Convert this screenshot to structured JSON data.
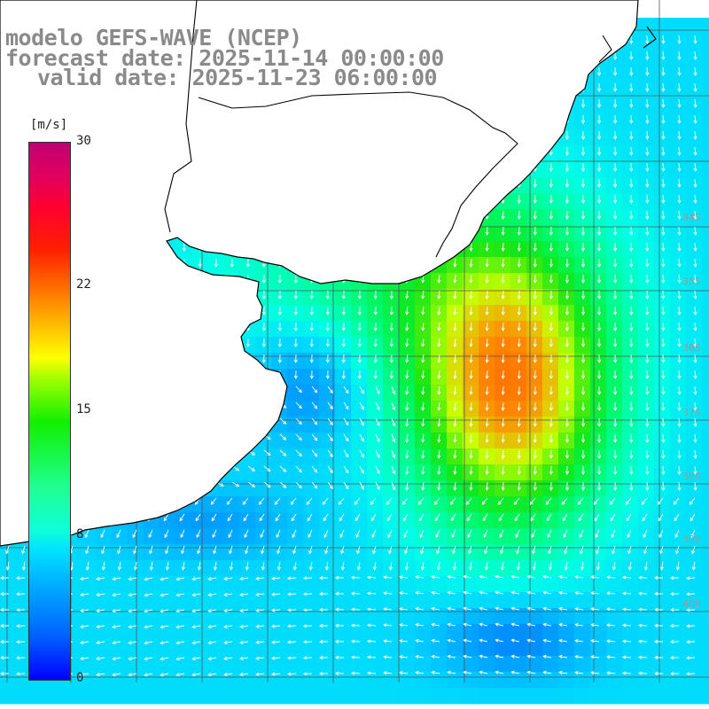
{
  "title": {
    "line1": "modelo GEFS-WAVE (NCEP)",
    "line2": "forecast date: 2025-11-14 00:00:00",
    "line3": "valid date: 2025-11-23 06:00:00"
  },
  "colorbar": {
    "unit": "[m/s]",
    "ticks": [
      {
        "label": "30",
        "value": 30
      },
      {
        "label": "22",
        "value": 22
      },
      {
        "label": "15",
        "value": 15
      },
      {
        "label": "8",
        "value": 8
      },
      {
        "label": "0",
        "value": 0
      }
    ],
    "range": [
      0,
      30
    ]
  },
  "map": {
    "field": "wind speed and direction",
    "grid": true,
    "lat_labels": [
      {
        "label": "34S",
        "y": 246
      },
      {
        "label": "35S",
        "y": 318
      },
      {
        "label": "36S",
        "y": 393
      },
      {
        "label": "37S",
        "y": 466
      },
      {
        "label": "38S",
        "y": 538
      },
      {
        "label": "39S",
        "y": 609
      },
      {
        "label": "40S",
        "y": 682
      }
    ],
    "colors": {
      "land": "#ffffff",
      "coast": "#000000",
      "grid": "#555555",
      "arrows": "#ffffff",
      "title": "#8a8a8a"
    }
  }
}
